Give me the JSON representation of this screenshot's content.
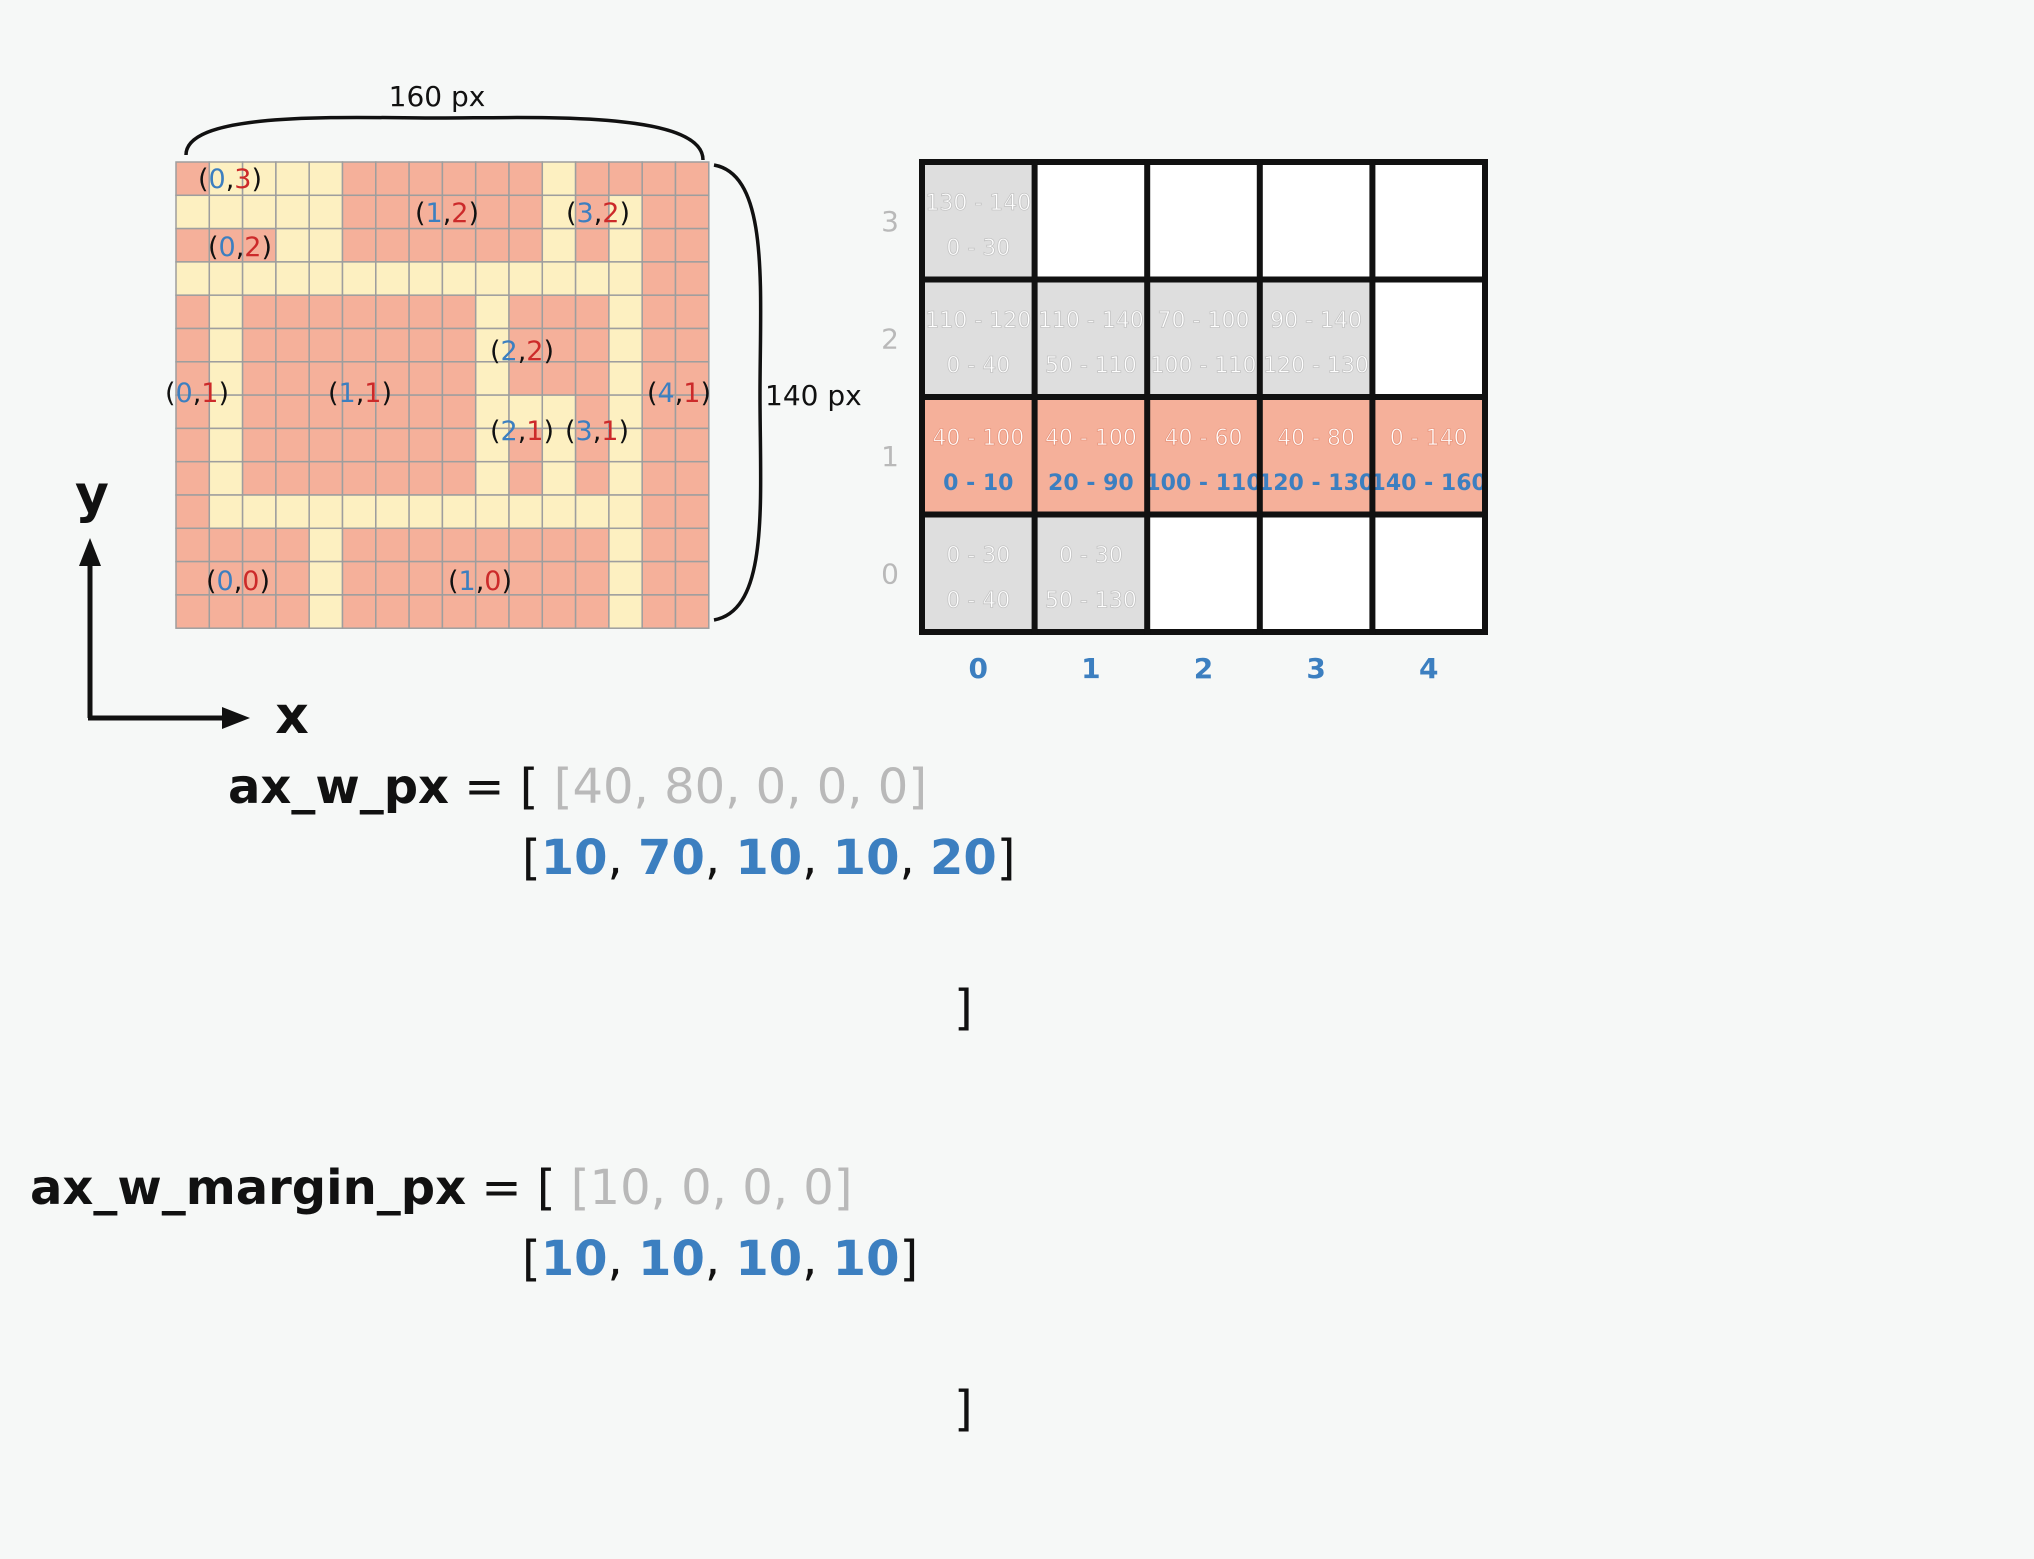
{
  "colors": {
    "background": "#f6f8f7",
    "salmon": "#f5b09a",
    "cream": "#fdf0c1",
    "grid_line": "#9e9e9e",
    "gray_cell": "#dedede",
    "blue": "#3c7fc0",
    "red": "#cc2a2a",
    "gray_text": "#b9b9b9",
    "black": "#111111"
  },
  "dimensions": {
    "width_label": "160 px",
    "height_label": "140 px"
  },
  "axes": {
    "x_label": "x",
    "y_label": "y"
  },
  "pixel_map": {
    "cols": 16,
    "rows": 14,
    "rows_top_to_bottom": [
      "SCCCCSSSSSSCSSSS",
      "CCCCCSSSSSSCSCSS",
      "SSSCCSSSSSSCSCSS",
      "CCCCCCCCCCCCCCSS",
      "SCSSSSSSSCSSSCSS",
      "SCSSSSSSSCSSSCSS",
      "SCSSSSSSSCSSSCSS",
      "SCSSSSSSSCCCSCSS",
      "SCSSSSSSSCSCSCSS",
      "SCSSSSSSSCSCSCSS",
      "SCCCCCCCCCCCCCSS",
      "SSSSCSSSSSSSSCSS",
      "SSSSCSSSSSSSSCSS",
      "SSSSCSSSSSSSSCSS"
    ],
    "labels": [
      {
        "x": "0",
        "y": "3"
      },
      {
        "x": "1",
        "y": "2"
      },
      {
        "x": "3",
        "y": "2"
      },
      {
        "x": "0",
        "y": "2"
      },
      {
        "x": "2",
        "y": "2"
      },
      {
        "x": "0",
        "y": "1"
      },
      {
        "x": "1",
        "y": "1"
      },
      {
        "x": "4",
        "y": "1"
      },
      {
        "x": "2",
        "y": "1"
      },
      {
        "x": "3",
        "y": "1"
      },
      {
        "x": "0",
        "y": "0"
      },
      {
        "x": "1",
        "y": "0"
      }
    ]
  },
  "layout_grid": {
    "row_labels": [
      "3",
      "2",
      "1",
      "0"
    ],
    "col_labels": [
      "0",
      "1",
      "2",
      "3",
      "4"
    ],
    "cells": [
      {
        "row": "3",
        "col": "0",
        "fill": "gray",
        "top": "130 - 140",
        "bottom": "0 - 30"
      },
      {
        "row": "3",
        "col": "1",
        "fill": "white",
        "top": "",
        "bottom": ""
      },
      {
        "row": "3",
        "col": "2",
        "fill": "white",
        "top": "",
        "bottom": ""
      },
      {
        "row": "3",
        "col": "3",
        "fill": "white",
        "top": "",
        "bottom": ""
      },
      {
        "row": "3",
        "col": "4",
        "fill": "white",
        "top": "",
        "bottom": ""
      },
      {
        "row": "2",
        "col": "0",
        "fill": "gray",
        "top": "110 - 120",
        "bottom": "0 - 40"
      },
      {
        "row": "2",
        "col": "1",
        "fill": "gray",
        "top": "110 - 140",
        "bottom": "50 - 110"
      },
      {
        "row": "2",
        "col": "2",
        "fill": "gray",
        "top": "70 - 100",
        "bottom": "100 - 110"
      },
      {
        "row": "2",
        "col": "3",
        "fill": "gray",
        "top": "90 - 140",
        "bottom": "120 - 130"
      },
      {
        "row": "2",
        "col": "4",
        "fill": "white",
        "top": "",
        "bottom": ""
      },
      {
        "row": "1",
        "col": "0",
        "fill": "salmon",
        "top": "40 - 100",
        "bottom": "0 - 10"
      },
      {
        "row": "1",
        "col": "1",
        "fill": "salmon",
        "top": "40 - 100",
        "bottom": "20 - 90"
      },
      {
        "row": "1",
        "col": "2",
        "fill": "salmon",
        "top": "40 - 60",
        "bottom": "100 - 110"
      },
      {
        "row": "1",
        "col": "3",
        "fill": "salmon",
        "top": "40 - 80",
        "bottom": "120 - 130"
      },
      {
        "row": "1",
        "col": "4",
        "fill": "salmon",
        "top": "0 - 140",
        "bottom": "140 - 160"
      },
      {
        "row": "0",
        "col": "0",
        "fill": "gray",
        "top": "0 - 30",
        "bottom": "0 - 40"
      },
      {
        "row": "0",
        "col": "1",
        "fill": "gray",
        "top": "0 - 30",
        "bottom": "50 - 130"
      },
      {
        "row": "0",
        "col": "2",
        "fill": "white",
        "top": "",
        "bottom": ""
      },
      {
        "row": "0",
        "col": "3",
        "fill": "white",
        "top": "",
        "bottom": ""
      },
      {
        "row": "0",
        "col": "4",
        "fill": "white",
        "top": "",
        "bottom": ""
      }
    ]
  },
  "code": {
    "ax_w_px": {
      "name": "ax_w_px",
      "equals": " = [ ",
      "line1_values": [
        "40",
        "80",
        "0",
        "0",
        "0"
      ],
      "line2_values": [
        "10",
        "70",
        "10",
        "10",
        "20"
      ],
      "closing": "]"
    },
    "ax_w_margin_px": {
      "name": "ax_w_margin_px",
      "equals": " = [ ",
      "line1_values": [
        "10",
        "0",
        "0",
        "0"
      ],
      "line2_values": [
        "10",
        "10",
        "10",
        "10"
      ],
      "closing": "]"
    }
  }
}
